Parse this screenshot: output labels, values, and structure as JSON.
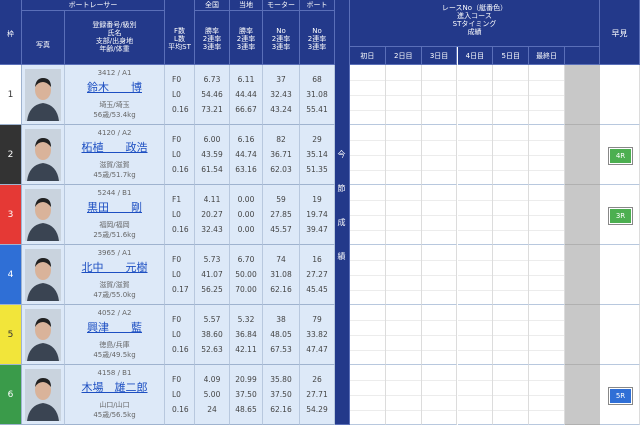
{
  "header": {
    "frame": "枠",
    "racer": "ボートレーサー",
    "photo": "写真",
    "racer_fields": [
      "登録番号/級別",
      "氏名",
      "支部/出身地",
      "年齢/体重"
    ],
    "st_fields": [
      "F数",
      "L数",
      "平均ST"
    ],
    "groups": [
      {
        "title": "全国",
        "fields": [
          "勝率",
          "2連率",
          "3連率"
        ]
      },
      {
        "title": "当地",
        "fields": [
          "勝率",
          "2連率",
          "3連率"
        ]
      },
      {
        "title": "モーター",
        "fields": [
          "No",
          "2連率",
          "3連率"
        ]
      },
      {
        "title": "ボート",
        "fields": [
          "No",
          "2連率",
          "3連率"
        ]
      }
    ],
    "series_result": "今節成績",
    "race_header": [
      "レースNo（艇番色）",
      "進入コース",
      "STタイミング",
      "成績"
    ],
    "days": [
      "初日",
      "2日目",
      "3日目",
      "4日目",
      "5日目",
      "最終日"
    ],
    "quick": "早見"
  },
  "racers": [
    {
      "frame": "1",
      "frame_color": "#ffffff",
      "frame_text": "#333333",
      "id_class": "3412 / A1",
      "name": "鈴木　　博",
      "branch": "埼玉/埼玉",
      "age_weight": "56歳/53.4kg",
      "fl": [
        "F0",
        "L0",
        "0.16"
      ],
      "stats": [
        [
          "6.73",
          "54.46",
          "73.21"
        ],
        [
          "6.11",
          "44.44",
          "66.67"
        ],
        [
          "37",
          "32.43",
          "43.24"
        ],
        [
          "68",
          "31.08",
          "55.41"
        ]
      ]
    },
    {
      "frame": "2",
      "frame_color": "#333333",
      "frame_text": "#ffffff",
      "id_class": "4120 / A2",
      "name": "柘植　　政浩",
      "branch": "滋賀/滋賀",
      "age_weight": "45歳/51.7kg",
      "fl": [
        "F0",
        "L0",
        "0.16"
      ],
      "stats": [
        [
          "6.00",
          "43.59",
          "61.54"
        ],
        [
          "6.16",
          "44.74",
          "63.16"
        ],
        [
          "82",
          "36.71",
          "62.03"
        ],
        [
          "29",
          "35.14",
          "51.35"
        ]
      ],
      "quick": {
        "label": "4R",
        "color": "#4caf50"
      }
    },
    {
      "frame": "3",
      "frame_color": "#e53935",
      "frame_text": "#ffffff",
      "id_class": "5244 / B1",
      "name": "黒田　　剛",
      "branch": "福岡/福岡",
      "age_weight": "25歳/51.6kg",
      "fl": [
        "F1",
        "L0",
        "0.16"
      ],
      "stats": [
        [
          "4.11",
          "20.27",
          "32.43"
        ],
        [
          "0.00",
          "0.00",
          "0.00"
        ],
        [
          "59",
          "27.85",
          "45.57"
        ],
        [
          "19",
          "19.74",
          "39.47"
        ]
      ],
      "quick": {
        "label": "3R",
        "color": "#4caf50"
      }
    },
    {
      "frame": "4",
      "frame_color": "#2f6fd6",
      "frame_text": "#ffffff",
      "id_class": "3965 / A1",
      "name": "北中　　元樹",
      "branch": "滋賀/滋賀",
      "age_weight": "47歳/55.0kg",
      "fl": [
        "F0",
        "L0",
        "0.17"
      ],
      "stats": [
        [
          "5.73",
          "41.07",
          "56.25"
        ],
        [
          "6.70",
          "50.00",
          "70.00"
        ],
        [
          "74",
          "31.08",
          "62.16"
        ],
        [
          "16",
          "27.27",
          "45.45"
        ]
      ]
    },
    {
      "frame": "5",
      "frame_color": "#f2e53a",
      "frame_text": "#333333",
      "id_class": "4052 / A2",
      "name": "興津　　藍",
      "branch": "徳島/兵庫",
      "age_weight": "45歳/49.5kg",
      "fl": [
        "F0",
        "L0",
        "0.16"
      ],
      "stats": [
        [
          "5.57",
          "38.60",
          "52.63"
        ],
        [
          "5.32",
          "36.84",
          "42.11"
        ],
        [
          "38",
          "48.05",
          "67.53"
        ],
        [
          "79",
          "33.82",
          "47.47"
        ]
      ]
    },
    {
      "frame": "6",
      "frame_color": "#3a9b4a",
      "frame_text": "#ffffff",
      "id_class": "4158 / B1",
      "name": "木場　雄二郎",
      "branch": "山口/山口",
      "age_weight": "45歳/56.5kg",
      "fl": [
        "F0",
        "L0",
        "0.16"
      ],
      "stats": [
        [
          "4.09",
          "5.00",
          "24"
        ],
        [
          "20.99",
          "37.50",
          "48.65"
        ],
        [
          "35.80",
          "37.50",
          "62.16"
        ],
        [
          "26",
          "27.71",
          "54.29"
        ]
      ],
      "quick": {
        "label": "5R",
        "color": "#2f6fd6"
      }
    }
  ]
}
